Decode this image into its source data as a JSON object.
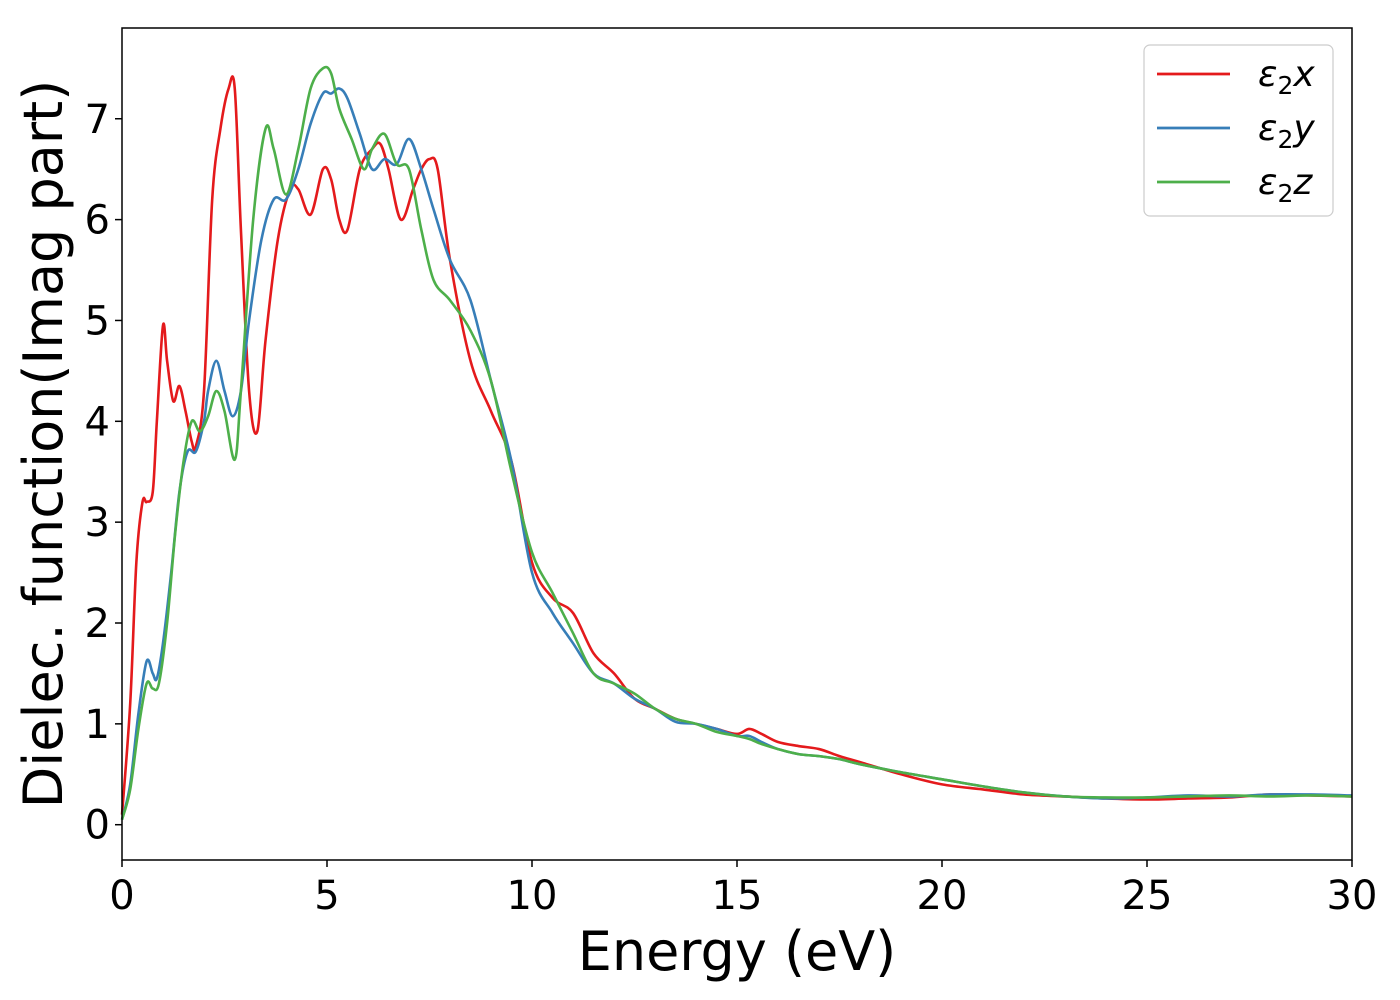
{
  "chart_data": {
    "type": "line",
    "title": "",
    "xlabel": "Energy (eV)",
    "ylabel": "Dielec. function(Imag part)",
    "xlim": [
      0,
      30
    ],
    "ylim": [
      -0.35,
      7.9
    ],
    "xticks": [
      0,
      5,
      10,
      15,
      20,
      25,
      30
    ],
    "yticks": [
      0,
      1,
      2,
      3,
      4,
      5,
      6,
      7
    ],
    "grid": false,
    "legend_position": "top-right",
    "series": [
      {
        "name": "ε2x",
        "legend": {
          "base": "ε",
          "sub": "2",
          "tail": "x"
        },
        "color": "#e41a1c",
        "x": [
          0,
          0.2,
          0.35,
          0.5,
          0.6,
          0.75,
          0.85,
          1.0,
          1.1,
          1.25,
          1.4,
          1.55,
          1.7,
          1.8,
          2.0,
          2.2,
          2.4,
          2.6,
          2.75,
          2.9,
          3.1,
          3.3,
          3.5,
          3.8,
          4.1,
          4.3,
          4.6,
          4.9,
          5.1,
          5.3,
          5.5,
          5.8,
          6.1,
          6.3,
          6.5,
          6.8,
          7.1,
          7.3,
          7.5,
          7.7,
          8.0,
          8.5,
          9.0,
          9.5,
          10.0,
          10.5,
          11.0,
          11.5,
          12.0,
          12.5,
          13.0,
          13.5,
          14.0,
          14.5,
          15.0,
          15.3,
          15.6,
          16.0,
          16.5,
          17.0,
          17.5,
          18.0,
          19.0,
          20.0,
          21.0,
          22.0,
          23.0,
          24.0,
          25.0,
          26.0,
          27.0,
          28.0,
          29.0,
          30.0
        ],
        "y": [
          0.1,
          1.2,
          2.6,
          3.2,
          3.2,
          3.3,
          4.0,
          4.95,
          4.6,
          4.2,
          4.35,
          4.1,
          3.8,
          3.75,
          4.3,
          6.2,
          6.9,
          7.3,
          7.3,
          5.9,
          4.3,
          3.9,
          4.8,
          5.8,
          6.3,
          6.3,
          6.05,
          6.5,
          6.4,
          6.0,
          5.9,
          6.5,
          6.7,
          6.75,
          6.5,
          6.0,
          6.3,
          6.5,
          6.6,
          6.5,
          5.6,
          4.6,
          4.1,
          3.6,
          2.6,
          2.25,
          2.1,
          1.7,
          1.5,
          1.25,
          1.15,
          1.05,
          1.0,
          0.95,
          0.9,
          0.95,
          0.9,
          0.82,
          0.78,
          0.75,
          0.68,
          0.62,
          0.5,
          0.4,
          0.35,
          0.3,
          0.28,
          0.26,
          0.25,
          0.26,
          0.27,
          0.3,
          0.29,
          0.28
        ]
      },
      {
        "name": "ε2y",
        "legend": {
          "base": "ε",
          "sub": "2",
          "tail": "y"
        },
        "color": "#377eb8",
        "x": [
          0,
          0.2,
          0.4,
          0.6,
          0.75,
          0.85,
          1.0,
          1.2,
          1.4,
          1.6,
          1.8,
          2.0,
          2.1,
          2.3,
          2.5,
          2.7,
          2.9,
          3.1,
          3.4,
          3.7,
          4.0,
          4.3,
          4.6,
          4.9,
          5.1,
          5.3,
          5.5,
          5.8,
          6.1,
          6.4,
          6.7,
          7.0,
          7.3,
          7.6,
          8.0,
          8.5,
          9.0,
          9.5,
          10.0,
          10.5,
          11.0,
          11.5,
          12.0,
          12.5,
          13.0,
          13.5,
          14.0,
          14.5,
          15.0,
          15.3,
          15.6,
          16.0,
          16.5,
          17.0,
          17.5,
          18.0,
          19.0,
          20.0,
          21.0,
          22.0,
          23.0,
          24.0,
          25.0,
          26.0,
          27.0,
          28.0,
          29.0,
          30.0
        ],
        "y": [
          0.05,
          0.4,
          1.1,
          1.62,
          1.5,
          1.45,
          1.8,
          2.5,
          3.3,
          3.7,
          3.7,
          4.0,
          4.3,
          4.6,
          4.3,
          4.05,
          4.3,
          5.0,
          5.8,
          6.2,
          6.2,
          6.5,
          6.95,
          7.25,
          7.25,
          7.3,
          7.2,
          6.85,
          6.5,
          6.6,
          6.55,
          6.8,
          6.5,
          6.1,
          5.6,
          5.2,
          4.4,
          3.6,
          2.5,
          2.1,
          1.8,
          1.5,
          1.4,
          1.25,
          1.15,
          1.02,
          1.0,
          0.95,
          0.88,
          0.88,
          0.82,
          0.75,
          0.7,
          0.68,
          0.65,
          0.6,
          0.52,
          0.45,
          0.38,
          0.32,
          0.28,
          0.26,
          0.27,
          0.29,
          0.28,
          0.3,
          0.3,
          0.29
        ]
      },
      {
        "name": "ε2z",
        "legend": {
          "base": "ε",
          "sub": "2",
          "tail": "z"
        },
        "color": "#4daf4a",
        "x": [
          0,
          0.2,
          0.4,
          0.6,
          0.75,
          0.9,
          1.1,
          1.3,
          1.5,
          1.7,
          1.9,
          2.1,
          2.3,
          2.5,
          2.75,
          2.9,
          3.2,
          3.5,
          3.7,
          4.0,
          4.3,
          4.6,
          4.9,
          5.1,
          5.3,
          5.6,
          5.9,
          6.1,
          6.4,
          6.7,
          7.0,
          7.3,
          7.6,
          8.0,
          8.5,
          9.0,
          9.5,
          10.0,
          10.5,
          11.0,
          11.5,
          12.0,
          12.5,
          13.0,
          13.5,
          14.0,
          14.5,
          15.0,
          15.3,
          15.6,
          16.0,
          16.5,
          17.0,
          17.5,
          18.0,
          19.0,
          20.0,
          21.0,
          22.0,
          23.0,
          24.0,
          25.0,
          26.0,
          27.0,
          28.0,
          29.0,
          30.0
        ],
        "y": [
          0.05,
          0.35,
          0.95,
          1.4,
          1.35,
          1.4,
          2.0,
          2.9,
          3.6,
          4.0,
          3.9,
          4.05,
          4.3,
          4.1,
          3.62,
          4.3,
          6.0,
          6.9,
          6.7,
          6.25,
          6.7,
          7.3,
          7.5,
          7.45,
          7.1,
          6.8,
          6.5,
          6.7,
          6.85,
          6.55,
          6.5,
          5.9,
          5.4,
          5.2,
          4.9,
          4.4,
          3.5,
          2.7,
          2.3,
          1.9,
          1.5,
          1.4,
          1.3,
          1.15,
          1.05,
          1.0,
          0.92,
          0.88,
          0.85,
          0.8,
          0.75,
          0.7,
          0.68,
          0.65,
          0.6,
          0.52,
          0.45,
          0.38,
          0.32,
          0.28,
          0.27,
          0.27,
          0.28,
          0.29,
          0.28,
          0.29,
          0.28
        ]
      }
    ]
  }
}
